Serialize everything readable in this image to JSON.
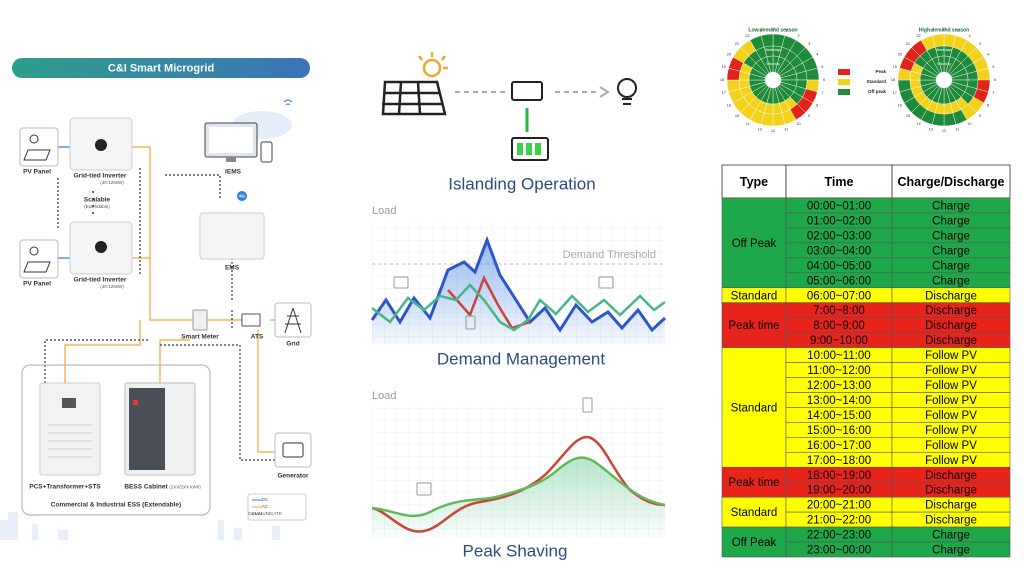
{
  "microgrid": {
    "title": "C&I Smart Microgrid",
    "pv_panel_1": "PV Panel",
    "inverter_1": "Grid-tied Inverter",
    "inverter_1_rating": "(30-125kW)",
    "scalable": "Scalable",
    "extendable": "(Extendable)",
    "pv_panel_2": "PV Panel",
    "inverter_2": "Grid-tied Inverter",
    "inverter_2_rating": "(30-125kW)",
    "iems": "IEMS",
    "network": "4G",
    "ems": "EMS",
    "smart_meter": "Smart Meter",
    "ats": "ATS",
    "grid": "Grid",
    "generator": "Generator",
    "pcs": "PCS+Transformer+STS",
    "bess": "BESS Cabinet",
    "bess_rating": "(2XX/2XX kWh)",
    "ess": "Commercial & Industrial ESS (Extendable)",
    "legend": [
      "DC",
      "AC",
      "COMMUNICATE"
    ]
  },
  "islanding": {
    "title": "Islanding Operation"
  },
  "demand_management": {
    "title": "Demand Management",
    "y_label": "Load",
    "annotation": "Demand Threshold"
  },
  "peak_shaving": {
    "title": "Peak Shaving",
    "y_label": "Load"
  },
  "tou": {
    "low_title": "Low demand season",
    "high_title": "High demand season",
    "rings": [
      "Weekdays",
      "Saturday",
      "Sunday"
    ],
    "hours": [
      24,
      1,
      2,
      3,
      4,
      5,
      6,
      7,
      8,
      9,
      10,
      11,
      12,
      13,
      14,
      15,
      16,
      17,
      18,
      19,
      20,
      21,
      22,
      23
    ],
    "legend": [
      {
        "label": "Peak",
        "color": "#e2231a"
      },
      {
        "label": "Standard",
        "color": "#f2d21b"
      },
      {
        "label": "Off peak",
        "color": "#1f8a3a"
      }
    ]
  },
  "table": {
    "header": [
      "Type",
      "Time",
      "Charge/Discharge"
    ],
    "groups": [
      {
        "type": "Off Peak",
        "color": "#1fa84a",
        "rows": [
          [
            "00:00~01:00",
            "Charge"
          ],
          [
            "01:00~02:00",
            "Charge"
          ],
          [
            "02:00~03:00",
            "Charge"
          ],
          [
            "03:00~04:00",
            "Charge"
          ],
          [
            "04:00~05:00",
            "Charge"
          ],
          [
            "05:00~06:00",
            "Charge"
          ]
        ]
      },
      {
        "type": "Standard",
        "color": "#ffff00",
        "rows": [
          [
            "06:00~07:00",
            "Discharge"
          ]
        ]
      },
      {
        "type": "Peak time",
        "color": "#e8231c",
        "rows": [
          [
            "7:00~8:00",
            "Discharge"
          ],
          [
            "8:00~9:00",
            "Discharge"
          ],
          [
            "9:00~10:00",
            "Discharge"
          ]
        ]
      },
      {
        "type": "Standard",
        "color": "#ffff00",
        "rows": [
          [
            "10:00~11:00",
            "Follow PV"
          ],
          [
            "11:00~12:00",
            "Follow PV"
          ],
          [
            "12:00~13:00",
            "Follow PV"
          ],
          [
            "13:00~14:00",
            "Follow PV"
          ],
          [
            "14:00~15:00",
            "Follow PV"
          ],
          [
            "15:00~16:00",
            "Follow PV"
          ],
          [
            "16:00~17:00",
            "Follow PV"
          ],
          [
            "17:00~18:00",
            "Follow PV"
          ]
        ]
      },
      {
        "type": "Peak time",
        "color": "#e8231c",
        "rows": [
          [
            "18:00~19:00",
            "Discharge"
          ],
          [
            "19:00~20:00",
            "Discharge"
          ]
        ]
      },
      {
        "type": "Standard",
        "color": "#ffff00",
        "rows": [
          [
            "20:00~21:00",
            "Discharge"
          ],
          [
            "21:00~22:00",
            "Discharge"
          ]
        ]
      },
      {
        "type": "Off Peak",
        "color": "#1fa84a",
        "rows": [
          [
            "22:00~23:00",
            "Charge"
          ],
          [
            "23:00~00:00",
            "Charge"
          ]
        ]
      }
    ]
  }
}
